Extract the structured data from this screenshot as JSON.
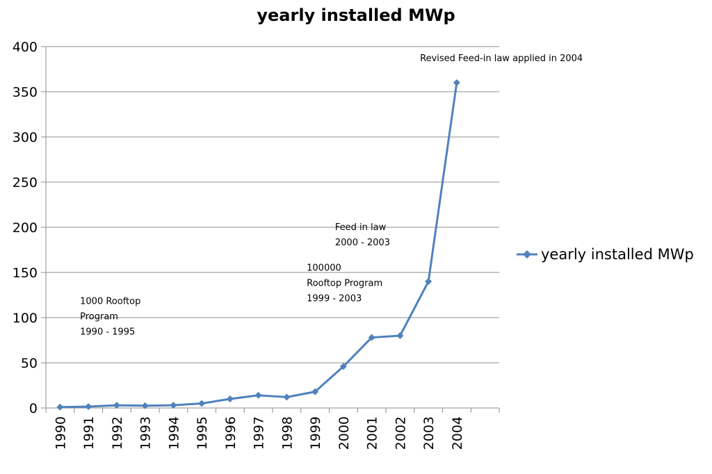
{
  "chart_data": {
    "type": "line",
    "title": "yearly installed MWp",
    "xlabel": "",
    "ylabel": "",
    "categories": [
      "1990",
      "1991",
      "1992",
      "1993",
      "1994",
      "1995",
      "1996",
      "1997",
      "1998",
      "1999",
      "2000",
      "2001",
      "2002",
      "2003",
      "2004"
    ],
    "series": [
      {
        "name": "yearly installed MWp",
        "color": "#4f81bd",
        "values": [
          1,
          1.5,
          3,
          2.5,
          3,
          5,
          10,
          14,
          12,
          18,
          46,
          78,
          80,
          140,
          360
        ]
      }
    ],
    "ylim": [
      0,
      400
    ],
    "yticks": [
      "0",
      "50",
      "100",
      "150",
      "200",
      "250",
      "300",
      "350",
      "400"
    ],
    "grid": true,
    "legend_position": "right",
    "annotations": [
      {
        "category": "1991",
        "y": 115,
        "lines": [
          "1000 Rooftop",
          "Program",
          "1990 - 1995"
        ]
      },
      {
        "category": "1999",
        "y": 152,
        "lines": [
          "100000",
          "Rooftop Program",
          "1999 - 2003"
        ]
      },
      {
        "category": "2000",
        "y": 197,
        "lines": [
          "Feed in law",
          "2000 - 2003"
        ]
      },
      {
        "category": "2003",
        "y": 384,
        "lines": [
          "Revised Feed-in law applied in 2004"
        ]
      }
    ]
  }
}
